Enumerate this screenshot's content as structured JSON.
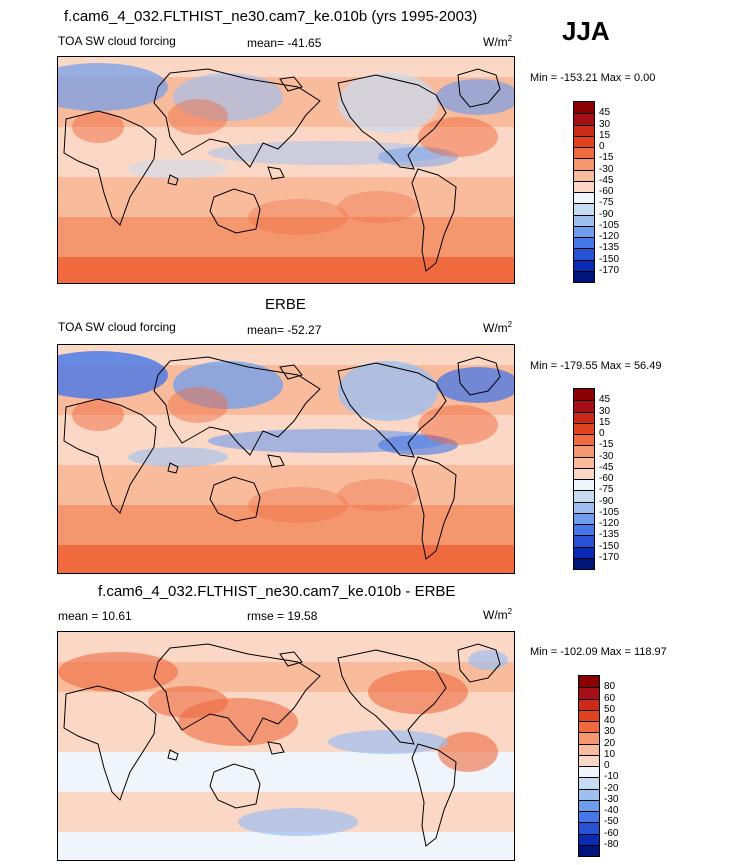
{
  "season": "JJA",
  "panels": [
    {
      "title": "f.cam6_4_032.FLTHIST_ne30.cam7_ke.010b (yrs 1995-2003)",
      "left_label": "TOA SW cloud forcing",
      "center_label": "mean= -41.65",
      "units": "W/m",
      "units_exp": "2",
      "minmax": "Min = -153.21 Max =   0.00",
      "levels": [
        "45",
        "30",
        "15",
        "0",
        "-15",
        "-30",
        "-45",
        "-60",
        "-75",
        "-90",
        "-105",
        "-120",
        "-135",
        "-150",
        "-170"
      ],
      "colors": [
        "#8b0000",
        "#a50f15",
        "#cb2a18",
        "#e2431f",
        "#ef6a3f",
        "#f4966e",
        "#f8bb9c",
        "#fbd8c5",
        "#f0f4fb",
        "#c7dbf3",
        "#9ebff0",
        "#6e9ded",
        "#4577e8",
        "#2752d6",
        "#0a2ab5",
        "#00157a"
      ]
    },
    {
      "title": "ERBE",
      "left_label": "TOA SW cloud forcing",
      "center_label": "mean= -52.27",
      "units": "W/m",
      "units_exp": "2",
      "minmax": "Min = -179.55 Max =  56.49",
      "levels": [
        "45",
        "30",
        "15",
        "0",
        "-15",
        "-30",
        "-45",
        "-60",
        "-75",
        "-90",
        "-105",
        "-120",
        "-135",
        "-150",
        "-170"
      ],
      "colors": [
        "#8b0000",
        "#a50f15",
        "#cb2a18",
        "#e2431f",
        "#ef6a3f",
        "#f4966e",
        "#f8bb9c",
        "#fbd8c5",
        "#f0f4fb",
        "#c7dbf3",
        "#9ebff0",
        "#6e9ded",
        "#4577e8",
        "#2752d6",
        "#0a2ab5",
        "#00157a"
      ]
    },
    {
      "title": "f.cam6_4_032.FLTHIST_ne30.cam7_ke.010b - ERBE",
      "left_label": "mean =  10.61",
      "center_label": "rmse =  19.58",
      "units": "W/m",
      "units_exp": "2",
      "minmax": "Min = -102.09 Max = 118.97",
      "levels": [
        "80",
        "60",
        "50",
        "40",
        "30",
        "20",
        "10",
        "0",
        "-10",
        "-20",
        "-30",
        "-40",
        "-50",
        "-60",
        "-80"
      ],
      "colors": [
        "#8b0000",
        "#a50f15",
        "#cb2a18",
        "#e2431f",
        "#ef6a3f",
        "#f4966e",
        "#f8bb9c",
        "#fbd8c5",
        "#f0f4fb",
        "#c7dbf3",
        "#9ebff0",
        "#6e9ded",
        "#4577e8",
        "#2752d6",
        "#0a2ab5",
        "#00157a"
      ]
    }
  ],
  "chart_data": {
    "type": "heatmap",
    "x": "longitude",
    "y": "latitude",
    "fields": [
      {
        "title": "f.cam6_4_032.FLTHIST_ne30.cam7_ke.010b (yrs 1995-2003)",
        "min": -153.21,
        "max": 0.0,
        "mean": -41.65
      },
      {
        "title": "ERBE",
        "min": -179.55,
        "max": 56.49,
        "mean": -52.27
      },
      {
        "title": "f.cam6_4_032.FLTHIST_ne30.cam7_ke.010b - ERBE",
        "min": -102.09,
        "max": 118.97,
        "mean": 10.61,
        "rmse": 19.58
      }
    ]
  }
}
